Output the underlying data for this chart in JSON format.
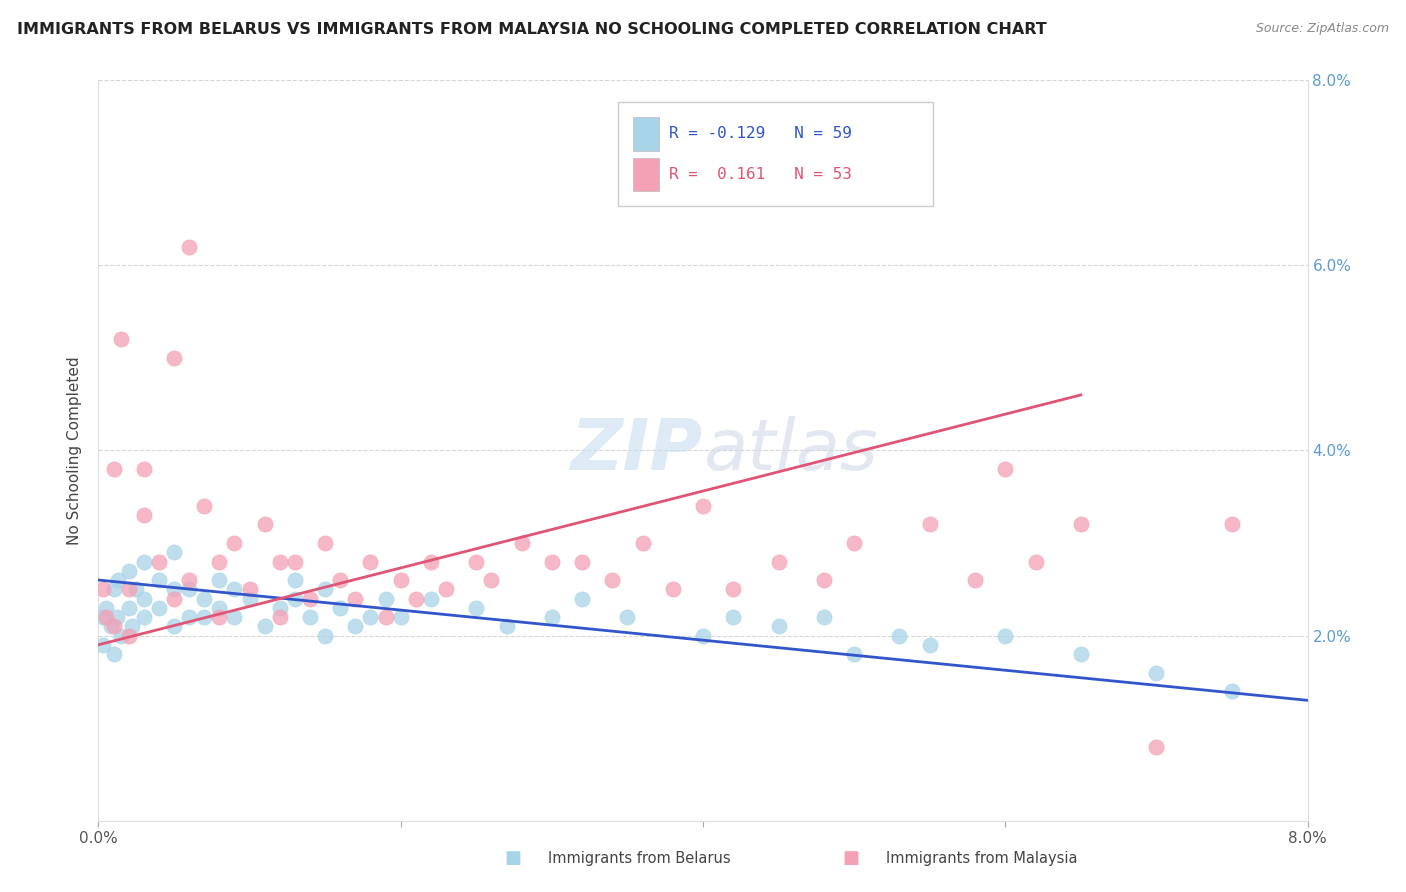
{
  "title": "IMMIGRANTS FROM BELARUS VS IMMIGRANTS FROM MALAYSIA NO SCHOOLING COMPLETED CORRELATION CHART",
  "source_text": "Source: ZipAtlas.com",
  "ylabel": "No Schooling Completed",
  "xmin": 0.0,
  "xmax": 0.08,
  "ymin": 0.0,
  "ymax": 0.08,
  "belarus_color": "#a8d4e8",
  "malaysia_color": "#f4a0b5",
  "belarus_line_color": "#3355cc",
  "malaysia_line_color": "#e05575",
  "belarus_R": -0.129,
  "belarus_N": 59,
  "malaysia_R": 0.161,
  "malaysia_N": 53,
  "belarus_trend_x0": 0.0,
  "belarus_trend_y0": 0.026,
  "belarus_trend_x1": 0.08,
  "belarus_trend_y1": 0.013,
  "malaysia_trend_x0": 0.0,
  "malaysia_trend_y0": 0.019,
  "malaysia_trend_x1": 0.065,
  "malaysia_trend_y1": 0.046,
  "belarus_scatter_x": [
    0.0003,
    0.0003,
    0.0005,
    0.0008,
    0.001,
    0.001,
    0.0012,
    0.0013,
    0.0015,
    0.002,
    0.002,
    0.0022,
    0.0025,
    0.003,
    0.003,
    0.003,
    0.004,
    0.004,
    0.005,
    0.005,
    0.005,
    0.006,
    0.006,
    0.007,
    0.007,
    0.008,
    0.008,
    0.009,
    0.009,
    0.01,
    0.011,
    0.012,
    0.013,
    0.013,
    0.014,
    0.015,
    0.015,
    0.016,
    0.017,
    0.018,
    0.019,
    0.02,
    0.022,
    0.025,
    0.027,
    0.03,
    0.032,
    0.035,
    0.04,
    0.042,
    0.045,
    0.048,
    0.05,
    0.053,
    0.055,
    0.06,
    0.065,
    0.07,
    0.075
  ],
  "belarus_scatter_y": [
    0.022,
    0.019,
    0.023,
    0.021,
    0.025,
    0.018,
    0.022,
    0.026,
    0.02,
    0.023,
    0.027,
    0.021,
    0.025,
    0.024,
    0.028,
    0.022,
    0.026,
    0.023,
    0.025,
    0.021,
    0.029,
    0.022,
    0.025,
    0.024,
    0.022,
    0.026,
    0.023,
    0.025,
    0.022,
    0.024,
    0.021,
    0.023,
    0.026,
    0.024,
    0.022,
    0.025,
    0.02,
    0.023,
    0.021,
    0.022,
    0.024,
    0.022,
    0.024,
    0.023,
    0.021,
    0.022,
    0.024,
    0.022,
    0.02,
    0.022,
    0.021,
    0.022,
    0.018,
    0.02,
    0.019,
    0.02,
    0.018,
    0.016,
    0.014
  ],
  "malaysia_scatter_x": [
    0.0003,
    0.0005,
    0.001,
    0.001,
    0.0015,
    0.002,
    0.002,
    0.003,
    0.003,
    0.004,
    0.005,
    0.005,
    0.006,
    0.006,
    0.007,
    0.008,
    0.008,
    0.009,
    0.01,
    0.011,
    0.012,
    0.012,
    0.013,
    0.014,
    0.015,
    0.016,
    0.017,
    0.018,
    0.019,
    0.02,
    0.021,
    0.022,
    0.023,
    0.025,
    0.026,
    0.028,
    0.03,
    0.032,
    0.034,
    0.036,
    0.038,
    0.04,
    0.042,
    0.045,
    0.048,
    0.05,
    0.055,
    0.058,
    0.06,
    0.062,
    0.065,
    0.07,
    0.075
  ],
  "malaysia_scatter_y": [
    0.025,
    0.022,
    0.038,
    0.021,
    0.052,
    0.025,
    0.02,
    0.033,
    0.038,
    0.028,
    0.05,
    0.024,
    0.062,
    0.026,
    0.034,
    0.028,
    0.022,
    0.03,
    0.025,
    0.032,
    0.028,
    0.022,
    0.028,
    0.024,
    0.03,
    0.026,
    0.024,
    0.028,
    0.022,
    0.026,
    0.024,
    0.028,
    0.025,
    0.028,
    0.026,
    0.03,
    0.028,
    0.028,
    0.026,
    0.03,
    0.025,
    0.034,
    0.025,
    0.028,
    0.026,
    0.03,
    0.032,
    0.026,
    0.038,
    0.028,
    0.032,
    0.008,
    0.032
  ]
}
